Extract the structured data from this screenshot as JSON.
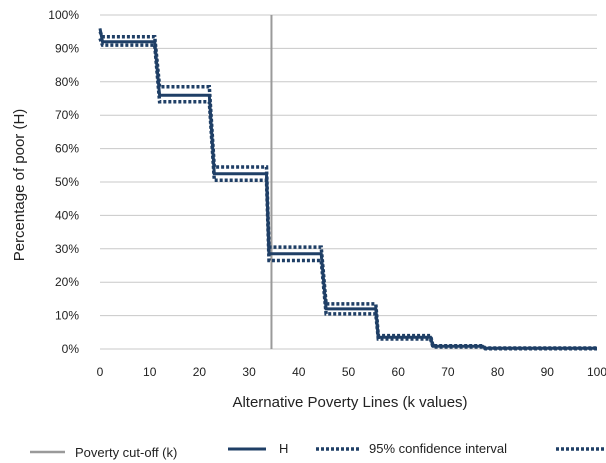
{
  "chart_data": {
    "type": "line",
    "title": "",
    "xlabel": "Alternative Poverty Lines (k values)",
    "ylabel": "Percentage of poor (H)",
    "xlim": [
      0,
      100
    ],
    "ylim": [
      0,
      100
    ],
    "x_ticks": [
      0,
      10,
      20,
      30,
      40,
      50,
      60,
      70,
      80,
      90,
      100
    ],
    "y_ticks": [
      0,
      10,
      20,
      30,
      40,
      50,
      60,
      70,
      80,
      90,
      100
    ],
    "x_tick_labels": [
      "0",
      "10",
      "20",
      "30",
      "40",
      "50",
      "60",
      "70",
      "80",
      "90",
      "100"
    ],
    "y_tick_labels": [
      "0%",
      "10%",
      "20%",
      "30%",
      "40%",
      "50%",
      "60%",
      "70%",
      "80%",
      "90%",
      "100%"
    ],
    "grid": "horizontal",
    "legend_position": "bottom",
    "cutoff": {
      "name": "Poverty cut-off (k)",
      "x": 34.5,
      "color": "#9a9a9a"
    },
    "series": [
      {
        "name": "H",
        "style": "solid",
        "color": "#1f3f66",
        "x": [
          0,
          0.5,
          11,
          12,
          22,
          23,
          33.5,
          34,
          44.5,
          45.5,
          55.5,
          56,
          66.5,
          67,
          77,
          77.5,
          100
        ],
        "y": [
          96,
          92,
          92,
          76,
          76,
          52.5,
          52.5,
          28.5,
          28.5,
          12,
          12,
          3.5,
          3.5,
          0.8,
          0.8,
          0.2,
          0.2
        ]
      },
      {
        "name": "95% confidence interval",
        "style": "dotted",
        "color": "#1f3f66",
        "x": [
          0,
          0.5,
          11,
          12,
          22,
          23,
          33.5,
          34,
          44.5,
          45.5,
          55.5,
          56,
          66.5,
          67,
          77,
          77.5,
          100
        ],
        "y": [
          95,
          93.5,
          93.5,
          78.5,
          78.5,
          54.5,
          54.5,
          30.5,
          30.5,
          13.5,
          13.5,
          4,
          4,
          1,
          1,
          0.3,
          0.3
        ]
      },
      {
        "name": "",
        "style": "dotted",
        "color": "#1f3f66",
        "x": [
          0,
          0.5,
          11,
          12,
          22,
          23,
          33.5,
          34,
          44.5,
          45.5,
          55.5,
          56,
          66.5,
          67,
          77,
          77.5,
          100
        ],
        "y": [
          93,
          91,
          91,
          74,
          74,
          50.5,
          50.5,
          26.5,
          26.5,
          10.5,
          10.5,
          3,
          3,
          0.6,
          0.6,
          0.1,
          0.1
        ]
      }
    ]
  }
}
